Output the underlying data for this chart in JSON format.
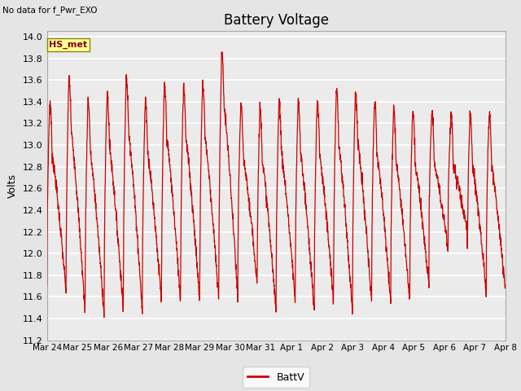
{
  "title": "Battery Voltage",
  "no_data_label": "No data for f_Pwr_EXO",
  "ylabel": "Volts",
  "legend_label": "BattV",
  "line_color": "#cc0000",
  "ylim": [
    11.2,
    14.05
  ],
  "yticks": [
    11.2,
    11.4,
    11.6,
    11.8,
    12.0,
    12.2,
    12.4,
    12.6,
    12.8,
    13.0,
    13.2,
    13.4,
    13.6,
    13.8,
    14.0
  ],
  "xtick_labels": [
    "Mar 24",
    "Mar 25",
    "Mar 26",
    "Mar 27",
    "Mar 28",
    "Mar 29",
    "Mar 30",
    "Mar 31",
    "Apr 1",
    "Apr 2",
    "Apr 3",
    "Apr 4",
    "Apr 5",
    "Apr 6",
    "Apr 7",
    "Apr 8"
  ],
  "bg_color": "#e5e5e5",
  "plot_bg_color": "#ebebeb",
  "grid_color": "#ffffff",
  "hs_met_label": "HS_met",
  "hs_met_bg": "#ffff99",
  "hs_met_border": "#888800"
}
